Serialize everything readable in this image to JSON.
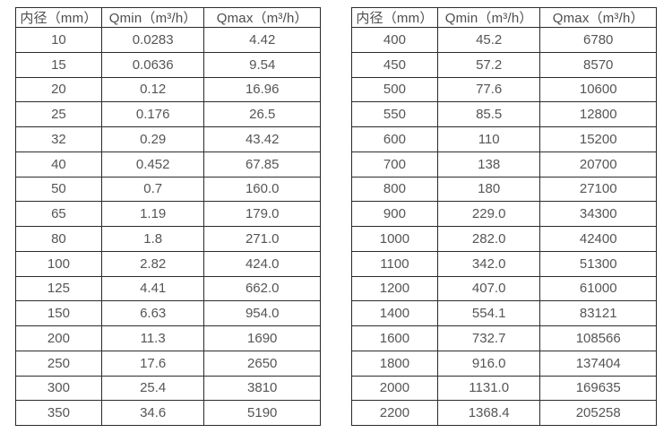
{
  "colors": {
    "border": "#2b2b2b",
    "text": "#555555",
    "background": "#ffffff"
  },
  "tables": [
    {
      "name": "flow-spec-table-small-diameters",
      "headers": [
        "内径（mm）",
        "Qmin（m³/h）",
        "Qmax（m³/h）"
      ],
      "rows": [
        [
          "10",
          "0.0283",
          "4.42"
        ],
        [
          "15",
          "0.0636",
          "9.54"
        ],
        [
          "20",
          "0.12",
          "16.96"
        ],
        [
          "25",
          "0.176",
          "26.5"
        ],
        [
          "32",
          "0.29",
          "43.42"
        ],
        [
          "40",
          "0.452",
          "67.85"
        ],
        [
          "50",
          "0.7",
          "160.0"
        ],
        [
          "65",
          "1.19",
          "179.0"
        ],
        [
          "80",
          "1.8",
          "271.0"
        ],
        [
          "100",
          "2.82",
          "424.0"
        ],
        [
          "125",
          "4.41",
          "662.0"
        ],
        [
          "150",
          "6.63",
          "954.0"
        ],
        [
          "200",
          "11.3",
          "1690"
        ],
        [
          "250",
          "17.6",
          "2650"
        ],
        [
          "300",
          "25.4",
          "3810"
        ],
        [
          "350",
          "34.6",
          "5190"
        ]
      ]
    },
    {
      "name": "flow-spec-table-large-diameters",
      "headers": [
        "内径（mm）",
        "Qmin（m³/h）",
        "Qmax（m³/h）"
      ],
      "rows": [
        [
          "400",
          "45.2",
          "6780"
        ],
        [
          "450",
          "57.2",
          "8570"
        ],
        [
          "500",
          "77.6",
          "10600"
        ],
        [
          "550",
          "85.5",
          "12800"
        ],
        [
          "600",
          "110",
          "15200"
        ],
        [
          "700",
          "138",
          "20700"
        ],
        [
          "800",
          "180",
          "27100"
        ],
        [
          "900",
          "229.0",
          "34300"
        ],
        [
          "1000",
          "282.0",
          "42400"
        ],
        [
          "1100",
          "342.0",
          "51300"
        ],
        [
          "1200",
          "407.0",
          "61000"
        ],
        [
          "1400",
          "554.1",
          "83121"
        ],
        [
          "1600",
          "732.7",
          "108566"
        ],
        [
          "1800",
          "916.0",
          "137404"
        ],
        [
          "2000",
          "1131.0",
          "169635"
        ],
        [
          "2200",
          "1368.4",
          "205258"
        ]
      ]
    }
  ]
}
